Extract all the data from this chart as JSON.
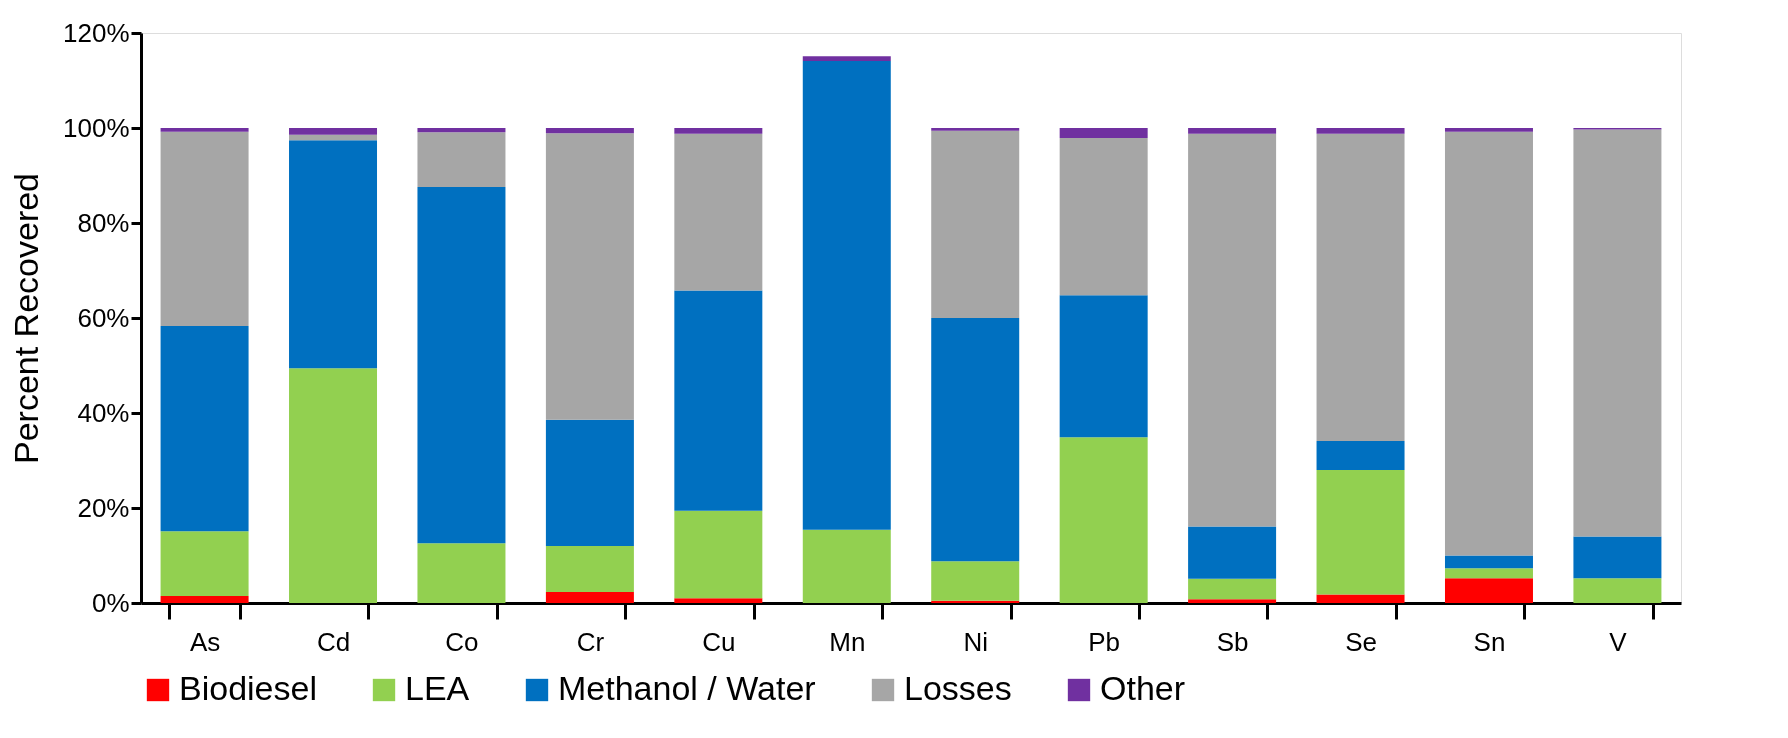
{
  "chart_data": {
    "type": "bar",
    "stacked": true,
    "ylabel": "Percent Recovered",
    "categories": [
      "As",
      "Cd",
      "Co",
      "Cr",
      "Cu",
      "Mn",
      "Ni",
      "Pb",
      "Sb",
      "Se",
      "Sn",
      "V"
    ],
    "series": [
      {
        "name": "Biodiesel",
        "color": "#ff0000",
        "values": [
          1.5,
          0,
          0,
          2.3,
          1.0,
          0,
          0.5,
          0,
          0.8,
          1.8,
          5.2,
          0
        ]
      },
      {
        "name": "LEA",
        "color": "#92d050",
        "values": [
          13.6,
          49.4,
          12.6,
          9.7,
          18.4,
          15.4,
          8.3,
          34.9,
          4.3,
          26.2,
          2.1,
          5.2
        ]
      },
      {
        "name": "Methanol / Water",
        "color": "#0070c0",
        "values": [
          43.2,
          48,
          75,
          26.6,
          46.4,
          98.7,
          51.2,
          29.9,
          11,
          6.1,
          2.7,
          8.8
        ]
      },
      {
        "name": "Losses",
        "color": "#a6a6a6",
        "values": [
          40.9,
          1.2,
          11.5,
          60.3,
          33,
          0,
          39.4,
          33.1,
          82.7,
          64.7,
          89.2,
          85.7
        ]
      },
      {
        "name": "Other",
        "color": "#7030a0",
        "values": [
          0.8,
          1.4,
          0.9,
          1.1,
          1.2,
          1.0,
          0.6,
          2.1,
          1.2,
          1.2,
          0.8,
          0.3
        ]
      }
    ],
    "ylim": [
      0,
      120
    ],
    "yticks": [
      {
        "value": 0,
        "label": "0%"
      },
      {
        "value": 20,
        "label": "20%"
      },
      {
        "value": 40,
        "label": "40%"
      },
      {
        "value": 60,
        "label": "60%"
      },
      {
        "value": 80,
        "label": "80%"
      },
      {
        "value": 100,
        "label": "100%"
      },
      {
        "value": 120,
        "label": "120%"
      }
    ],
    "grid": false,
    "legend": "bottom"
  }
}
